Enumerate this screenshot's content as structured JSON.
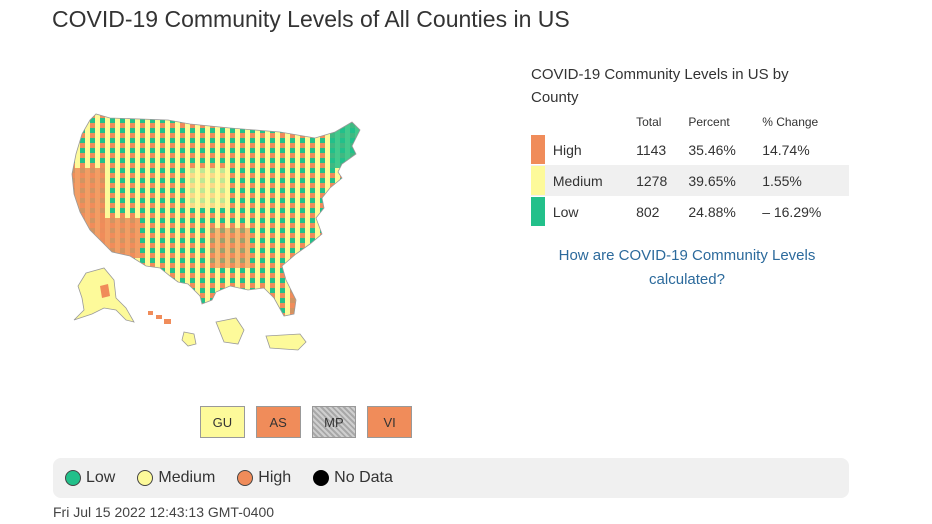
{
  "page": {
    "title": "COVID-19 Community Levels of All Counties in US",
    "timestamp": "Fri Jul 15 2022 12:43:13 GMT-0400"
  },
  "colors": {
    "low": "#22c08a",
    "medium": "#fdfa9a",
    "high": "#f08c5a",
    "no_data": "#000000",
    "link": "#2c6a9c"
  },
  "summary": {
    "title": "COVID-19 Community Levels in US by County",
    "headers": {
      "total": "Total",
      "percent": "Percent",
      "change": "% Change"
    },
    "rows": [
      {
        "level": "High",
        "total": "1143",
        "percent": "35.46%",
        "change": "14.74%"
      },
      {
        "level": "Medium",
        "total": "1278",
        "percent": "39.65%",
        "change": "1.55%"
      },
      {
        "level": "Low",
        "total": "802",
        "percent": "24.88%",
        "change": "– 16.29%"
      }
    ],
    "link_text": "How are COVID-19 Community Levels calculated?"
  },
  "territories": [
    {
      "code": "GU",
      "level": "medium"
    },
    {
      "code": "AS",
      "level": "high"
    },
    {
      "code": "MP",
      "level": "no_data"
    },
    {
      "code": "VI",
      "level": "high"
    }
  ],
  "legend": [
    {
      "label": "Low",
      "icon": "low-dot-icon"
    },
    {
      "label": "Medium",
      "icon": "medium-dot-icon"
    },
    {
      "label": "High",
      "icon": "high-dot-icon"
    },
    {
      "label": "No Data",
      "icon": "no-data-dot-icon"
    }
  ]
}
